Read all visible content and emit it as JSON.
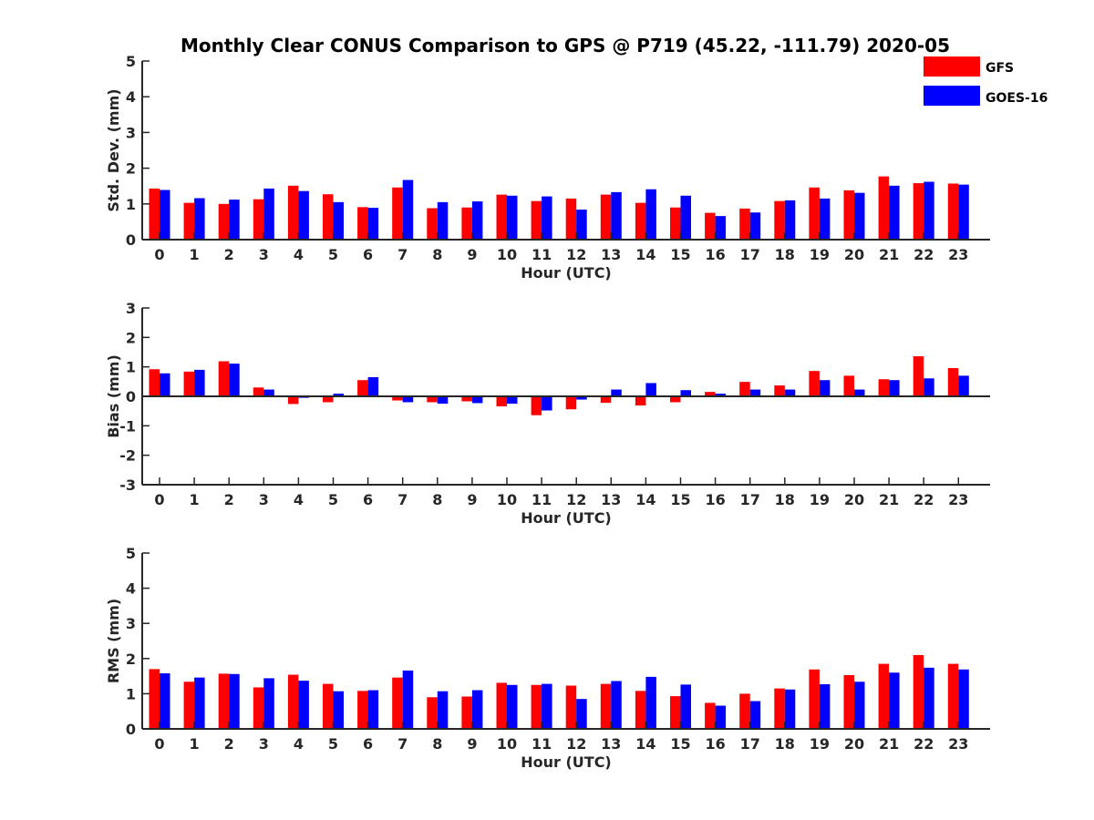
{
  "figure_title": "Monthly Clear CONUS Comparison to GPS @ P719 (45.22, -111.79) 2020-05",
  "colors": {
    "gfs": "#ff0000",
    "goes": "#0000ff",
    "axis": "#262626"
  },
  "legend": {
    "entries": [
      "GFS",
      "GOES-16"
    ],
    "placement": "top-right"
  },
  "chart_data": [
    {
      "type": "bar",
      "title": "Std. Dev.",
      "xlabel": "Hour (UTC)",
      "ylabel": "Std. Dev. (mm)",
      "ylim": [
        0,
        5
      ],
      "yticks": [
        0,
        1,
        2,
        3,
        4,
        5
      ],
      "categories": [
        "0",
        "1",
        "2",
        "3",
        "4",
        "5",
        "6",
        "7",
        "8",
        "9",
        "10",
        "11",
        "12",
        "13",
        "14",
        "15",
        "16",
        "17",
        "18",
        "19",
        "20",
        "21",
        "22",
        "23"
      ],
      "series": [
        {
          "name": "GFS",
          "values": [
            1.43,
            1.03,
            1.0,
            1.13,
            1.51,
            1.27,
            0.91,
            1.46,
            0.88,
            0.9,
            1.26,
            1.08,
            1.15,
            1.26,
            1.03,
            0.9,
            0.75,
            0.87,
            1.08,
            1.46,
            1.38,
            1.77,
            1.58,
            1.57
          ]
        },
        {
          "name": "GOES-16",
          "values": [
            1.39,
            1.16,
            1.12,
            1.43,
            1.36,
            1.05,
            0.89,
            1.67,
            1.05,
            1.07,
            1.23,
            1.21,
            0.84,
            1.33,
            1.41,
            1.23,
            0.66,
            0.76,
            1.1,
            1.15,
            1.31,
            1.51,
            1.62,
            1.54
          ]
        }
      ]
    },
    {
      "type": "bar",
      "title": "Bias",
      "xlabel": "Hour (UTC)",
      "ylabel": "Bias (mm)",
      "ylim": [
        -3,
        3
      ],
      "yticks": [
        -3,
        -2,
        -1,
        0,
        1,
        2,
        3
      ],
      "categories": [
        "0",
        "1",
        "2",
        "3",
        "4",
        "5",
        "6",
        "7",
        "8",
        "9",
        "10",
        "11",
        "12",
        "13",
        "14",
        "15",
        "16",
        "17",
        "18",
        "19",
        "20",
        "21",
        "22",
        "23"
      ],
      "series": [
        {
          "name": "GFS",
          "values": [
            0.92,
            0.84,
            1.19,
            0.3,
            -0.26,
            -0.2,
            0.55,
            -0.14,
            -0.2,
            -0.17,
            -0.34,
            -0.64,
            -0.44,
            -0.22,
            -0.31,
            -0.2,
            0.15,
            0.49,
            0.37,
            0.86,
            0.7,
            0.58,
            1.36,
            0.96
          ]
        },
        {
          "name": "GOES-16",
          "values": [
            0.78,
            0.9,
            1.11,
            0.23,
            -0.05,
            0.09,
            0.65,
            -0.2,
            -0.25,
            -0.23,
            -0.25,
            -0.48,
            -0.11,
            0.23,
            0.45,
            0.21,
            0.09,
            0.23,
            0.23,
            0.55,
            0.23,
            0.55,
            0.61,
            0.7
          ]
        }
      ]
    },
    {
      "type": "bar",
      "title": "RMS",
      "xlabel": "Hour (UTC)",
      "ylabel": "RMS (mm)",
      "ylim": [
        0,
        5
      ],
      "yticks": [
        0,
        1,
        2,
        3,
        4,
        5
      ],
      "categories": [
        "0",
        "1",
        "2",
        "3",
        "4",
        "5",
        "6",
        "7",
        "8",
        "9",
        "10",
        "11",
        "12",
        "13",
        "14",
        "15",
        "16",
        "17",
        "18",
        "19",
        "20",
        "21",
        "22",
        "23"
      ],
      "series": [
        {
          "name": "GFS",
          "values": [
            1.7,
            1.34,
            1.57,
            1.18,
            1.54,
            1.28,
            1.08,
            1.46,
            0.9,
            0.92,
            1.31,
            1.25,
            1.23,
            1.28,
            1.08,
            0.93,
            0.74,
            1.0,
            1.15,
            1.69,
            1.53,
            1.85,
            2.1,
            1.85
          ]
        },
        {
          "name": "GOES-16",
          "values": [
            1.58,
            1.46,
            1.56,
            1.44,
            1.37,
            1.07,
            1.1,
            1.66,
            1.07,
            1.1,
            1.25,
            1.28,
            0.85,
            1.36,
            1.48,
            1.26,
            0.66,
            0.79,
            1.12,
            1.27,
            1.34,
            1.6,
            1.74,
            1.69
          ]
        }
      ]
    }
  ]
}
